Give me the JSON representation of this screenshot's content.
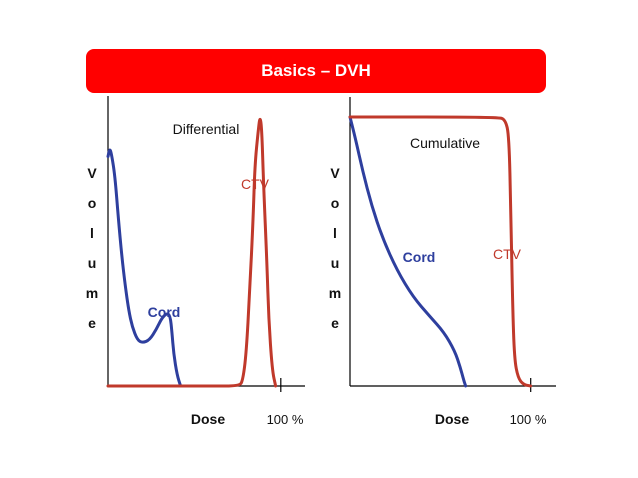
{
  "slide": {
    "title": "Basics – DVH"
  },
  "colors": {
    "title_bg": "#ff0000",
    "cord": "#2e3f9e",
    "ctv": "#c0392b",
    "axis": "#000000"
  },
  "chart_data": [
    {
      "type": "line",
      "title": "Differential",
      "xlabel": "Dose",
      "ylabel": "Volume",
      "ylabel_letters": [
        "V",
        "o",
        "l",
        "u",
        "m",
        "e"
      ],
      "x_tick_label": "100 %",
      "x_tick_value": 100,
      "xlim": [
        0,
        114
      ],
      "ylim": [
        0,
        1
      ],
      "series": [
        {
          "name": "Cord",
          "points": [
            [
              0,
              0.85
            ],
            [
              1,
              0.88
            ],
            [
              2,
              0.86
            ],
            [
              4,
              0.78
            ],
            [
              6,
              0.62
            ],
            [
              8,
              0.48
            ],
            [
              10,
              0.37
            ],
            [
              12,
              0.28
            ],
            [
              14,
              0.22
            ],
            [
              17,
              0.17
            ],
            [
              20,
              0.16
            ],
            [
              24,
              0.17
            ],
            [
              28,
              0.21
            ],
            [
              31,
              0.25
            ],
            [
              34,
              0.27
            ],
            [
              36,
              0.26
            ],
            [
              37,
              0.2
            ],
            [
              38,
              0.12
            ],
            [
              40,
              0.04
            ],
            [
              42,
              0.0
            ]
          ]
        },
        {
          "name": "CTV",
          "points": [
            [
              0,
              0.0
            ],
            [
              60,
              0.0
            ],
            [
              76,
              0.0
            ],
            [
              78,
              0.02
            ],
            [
              80,
              0.12
            ],
            [
              82,
              0.35
            ],
            [
              84,
              0.62
            ],
            [
              85,
              0.82
            ],
            [
              87,
              0.95
            ],
            [
              88,
              1.0
            ],
            [
              89,
              0.95
            ],
            [
              90,
              0.75
            ],
            [
              92,
              0.45
            ],
            [
              93,
              0.25
            ],
            [
              95,
              0.06
            ],
            [
              97,
              0.0
            ]
          ]
        }
      ]
    },
    {
      "type": "line",
      "title": "Cumulative",
      "xlabel": "Dose",
      "ylabel": "Volume",
      "ylabel_letters": [
        "V",
        "o",
        "l",
        "u",
        "m",
        "e"
      ],
      "x_tick_label": "100 %",
      "x_tick_value": 100,
      "xlim": [
        0,
        114
      ],
      "ylim": [
        0,
        1
      ],
      "series": [
        {
          "name": "Cord",
          "points": [
            [
              0,
              1.0
            ],
            [
              3,
              0.92
            ],
            [
              7,
              0.8
            ],
            [
              12,
              0.67
            ],
            [
              18,
              0.55
            ],
            [
              26,
              0.43
            ],
            [
              35,
              0.33
            ],
            [
              44,
              0.26
            ],
            [
              52,
              0.2
            ],
            [
              58,
              0.13
            ],
            [
              61,
              0.07
            ],
            [
              63,
              0.02
            ],
            [
              64,
              0.0
            ]
          ]
        },
        {
          "name": "CTV",
          "points": [
            [
              0,
              1.0
            ],
            [
              82,
              1.0
            ],
            [
              86,
              0.99
            ],
            [
              88,
              0.93
            ],
            [
              89,
              0.65
            ],
            [
              90,
              0.3
            ],
            [
              91,
              0.1
            ],
            [
              93,
              0.03
            ],
            [
              96,
              0.005
            ],
            [
              100,
              0.0
            ]
          ]
        }
      ]
    }
  ]
}
